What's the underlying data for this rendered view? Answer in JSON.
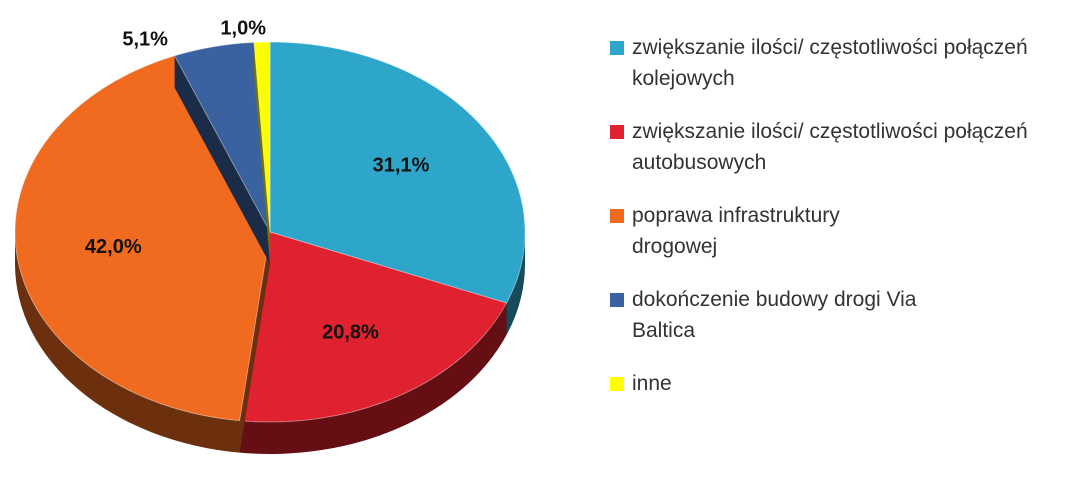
{
  "chart_data": {
    "type": "pie",
    "categories": [
      "zwiększanie ilości/ częstotliwości połączeń kolejowych",
      "zwiększanie ilości/ częstotliwości połączeń autobusowych",
      "poprawa infrastruktury drogowej",
      "dokończenie budowy drogi Via Baltica",
      "inne"
    ],
    "values": [
      31.1,
      20.8,
      42.0,
      5.1,
      1.0
    ],
    "value_labels": [
      "31,1%",
      "20,8%",
      "42,0%",
      "5,1%",
      "1,0%"
    ],
    "colors": [
      "#2ea6c9",
      "#e0212f",
      "#f06a1f",
      "#3a62a0",
      "#ffff00"
    ],
    "legend": "right"
  }
}
